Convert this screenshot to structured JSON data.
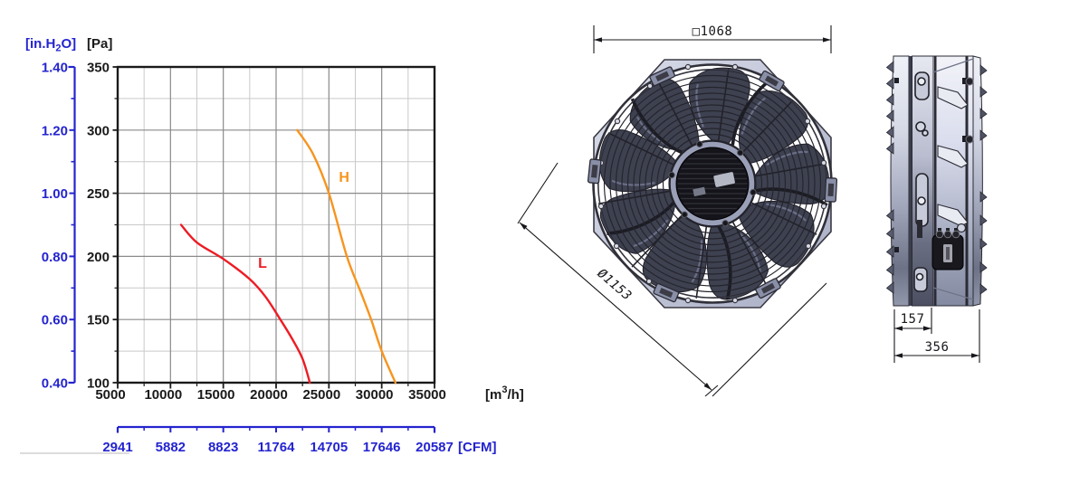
{
  "colors": {
    "axis_blue": "#2424d0",
    "ink": "#1a1a1a",
    "grid_major": "#8a8a8a",
    "grid_minor": "#c9c9c9",
    "curve_L_red": "#ed1c24",
    "curve_H_orange": "#f7941e",
    "plate_gray": "#c3c7d8",
    "dark_metal": "#3e4150"
  },
  "chart_data": {
    "type": "line",
    "title": "",
    "xlabel": "[m3/h]",
    "ylabel": "[Pa]",
    "xlim": [
      5000,
      35000
    ],
    "ylim": [
      100,
      350
    ],
    "grid": {
      "major": true,
      "minor": true
    },
    "legend_position": "on-curve",
    "x_axis": {
      "unit_pre": "[m",
      "unit_sup": "3",
      "unit_post": "/h]",
      "ticks": [
        {
          "v": 5000,
          "t": "5000"
        },
        {
          "v": 10000,
          "t": "10000"
        },
        {
          "v": 15000,
          "t": "15000"
        },
        {
          "v": 20000,
          "t": "20000"
        },
        {
          "v": 25000,
          "t": "25000"
        },
        {
          "v": 30000,
          "t": "30000"
        },
        {
          "v": 35000,
          "t": "35000"
        }
      ]
    },
    "x_minor": [
      7500,
      12500,
      17500,
      22500,
      27500,
      32500
    ],
    "pa_axis": {
      "title": "[Pa]",
      "ticks": [
        {
          "v": 350,
          "t": "350"
        },
        {
          "v": 300,
          "t": "300"
        },
        {
          "v": 250,
          "t": "250"
        },
        {
          "v": 200,
          "t": "200"
        },
        {
          "v": 150,
          "t": "150"
        },
        {
          "v": 100,
          "t": "100"
        }
      ]
    },
    "pa_minor": [
      125,
      175,
      225,
      275,
      325
    ],
    "inh2o_axis": {
      "title_pre": "[in.H",
      "title_sub": "2",
      "title_post": "O]",
      "ticks": [
        {
          "pa": 350,
          "t": "1.40"
        },
        {
          "pa": 300,
          "t": "1.20"
        },
        {
          "pa": 250,
          "t": "1.00"
        },
        {
          "pa": 200,
          "t": "0.80"
        },
        {
          "pa": 150,
          "t": "0.60"
        },
        {
          "pa": 100,
          "t": "0.40"
        }
      ]
    },
    "cfm_axis": {
      "title": "[CFM]",
      "ticks": [
        {
          "v": 5000,
          "t": "2941"
        },
        {
          "v": 10000,
          "t": "5882"
        },
        {
          "v": 15000,
          "t": "8823"
        },
        {
          "v": 20000,
          "t": "11764"
        },
        {
          "v": 25000,
          "t": "14705"
        },
        {
          "v": 30000,
          "t": "17646"
        },
        {
          "v": 35000,
          "t": "20587"
        }
      ]
    },
    "series": [
      {
        "name": "L",
        "color": "#ed1c24",
        "label_xy": [
          18300,
          191
        ],
        "points": [
          [
            11000,
            225
          ],
          [
            12500,
            211
          ],
          [
            15000,
            198
          ],
          [
            17500,
            182
          ],
          [
            19000,
            168
          ],
          [
            20400,
            150
          ],
          [
            21500,
            135
          ],
          [
            22500,
            119
          ],
          [
            23200,
            100
          ]
        ]
      },
      {
        "name": "H",
        "color": "#f7941e",
        "label_xy": [
          25950,
          259
        ],
        "points": [
          [
            22000,
            300
          ],
          [
            23500,
            281
          ],
          [
            25000,
            250
          ],
          [
            26700,
            200
          ],
          [
            28000,
            172
          ],
          [
            29000,
            150
          ],
          [
            30000,
            125
          ],
          [
            31300,
            100
          ]
        ]
      }
    ]
  },
  "drawings": {
    "front_view": {
      "width_dim": "□1068",
      "diameter_dim": "Ø1153"
    },
    "side_view": {
      "partial_depth_dim": "157",
      "total_depth_dim": "356"
    }
  }
}
